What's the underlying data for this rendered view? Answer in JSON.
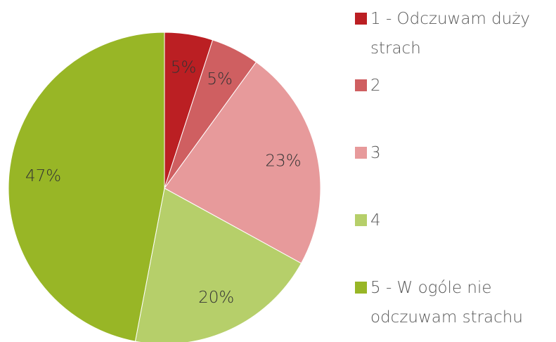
{
  "chart_data": {
    "type": "pie",
    "categories": [
      "1 - Odczuwam duży strach",
      "2",
      "3",
      "4",
      "5 - W ogóle nie odczuwam strachu"
    ],
    "values": [
      5,
      5,
      23,
      20,
      47
    ],
    "value_labels": [
      "5%",
      "5%",
      "23%",
      "20%",
      "47%"
    ],
    "colors": [
      "#bb1f23",
      "#cf5f61",
      "#e79a9b",
      "#b6cf6a",
      "#98b626"
    ],
    "legend": "right"
  }
}
